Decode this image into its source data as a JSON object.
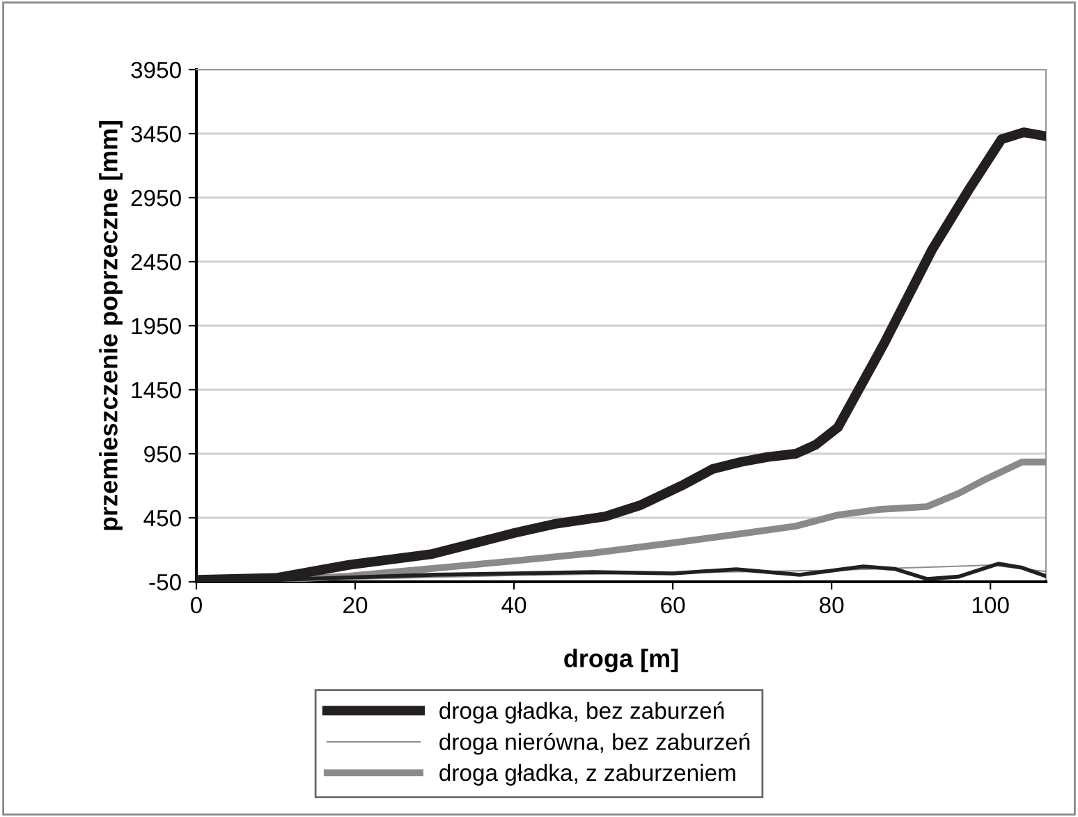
{
  "chart_data": {
    "type": "line",
    "xlabel": "droga [m]",
    "ylabel": "przemieszczenie poprzeczne [mm]",
    "xlim": [
      0,
      107
    ],
    "xticks": [
      0,
      20,
      40,
      60,
      80,
      100
    ],
    "ylim": [
      -50,
      3950
    ],
    "yticks": [
      -50,
      450,
      950,
      1450,
      1950,
      2450,
      2950,
      3450,
      3950
    ],
    "grid": "y",
    "legend": "bottom",
    "marker": "none",
    "line_style": "solid",
    "series": [
      {
        "name": "droga gładka, bez zaburzeń",
        "color": "#231f20",
        "x": [
          0,
          10,
          19,
          29.7,
          40,
          45,
          51.5,
          56,
          61.4,
          65,
          68.5,
          72,
          75.5,
          78,
          80.8,
          86.6,
          92.6,
          97.2,
          101.4,
          104.2,
          107
        ],
        "values": [
          -35,
          -20,
          80,
          167,
          330,
          400,
          460,
          550,
          710,
          830,
          885,
          925,
          950,
          1020,
          1156,
          1809,
          2537,
          3004,
          3406,
          3460,
          3430
        ]
      },
      {
        "name": "droga nierówna, bez zaburzeń",
        "color": "#8c8c8c",
        "x": [
          0,
          20,
          40,
          60,
          80,
          95,
          100,
          107
        ],
        "values": [
          -45,
          -30,
          0,
          20,
          40,
          70,
          80,
          30
        ]
      },
      {
        "name": "droga gładka, z zaburzeniem",
        "color": "#8a8a8a",
        "x": [
          0,
          10,
          19,
          30,
          40,
          50,
          60,
          68,
          75.5,
          80.8,
          86,
          92,
          96,
          99.5,
          104,
          107
        ],
        "values": [
          -40,
          -35,
          -7,
          55,
          113,
          175,
          254,
          320,
          385,
          472,
          515,
          537,
          640,
          754,
          885,
          885
        ]
      },
      {
        "color": "#231f20",
        "x": [
          0,
          10,
          20,
          30,
          40,
          50,
          60,
          68,
          76,
          84,
          88,
          92,
          96,
          101,
          104,
          107
        ],
        "values": [
          -40,
          -35,
          -15,
          5,
          15,
          26,
          15,
          48,
          4,
          70,
          50,
          -28,
          -10,
          91,
          60,
          -6
        ]
      }
    ]
  }
}
